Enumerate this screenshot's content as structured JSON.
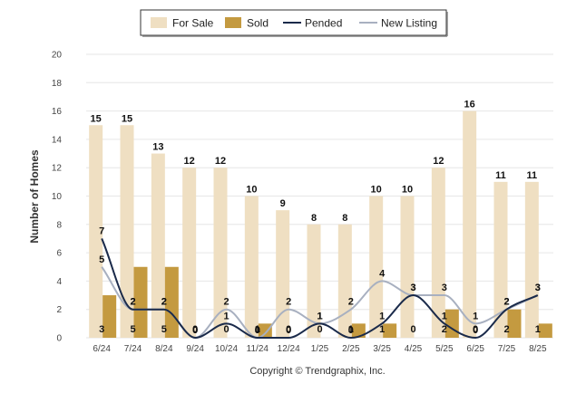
{
  "chart_data": {
    "type": "bar",
    "categories": [
      "6/24",
      "7/24",
      "8/24",
      "9/24",
      "10/24",
      "11/24",
      "12/24",
      "1/25",
      "2/25",
      "3/25",
      "4/25",
      "5/25",
      "6/25",
      "7/25",
      "8/25"
    ],
    "series": [
      {
        "name": "For Sale",
        "kind": "bar",
        "color": "#efdfc2",
        "values": [
          15,
          15,
          13,
          12,
          12,
          10,
          9,
          8,
          8,
          10,
          10,
          12,
          16,
          11,
          11
        ]
      },
      {
        "name": "Sold",
        "kind": "bar",
        "color": "#c49a40",
        "values": [
          3,
          5,
          5,
          0,
          0,
          1,
          0,
          0,
          1,
          1,
          0,
          2,
          0,
          2,
          1
        ]
      },
      {
        "name": "Pended",
        "kind": "line",
        "color": "#1a2a4a",
        "values": [
          7,
          2,
          2,
          0,
          1,
          0,
          0,
          1,
          0,
          1,
          3,
          1,
          0,
          2,
          3
        ]
      },
      {
        "name": "New Listing",
        "kind": "line",
        "color": "#a8b0c0",
        "values": [
          5,
          2,
          2,
          0,
          2,
          0,
          2,
          1,
          2,
          4,
          3,
          3,
          1,
          2,
          3
        ]
      }
    ],
    "ylabel": "Number of Homes",
    "ylim": [
      0,
      20
    ],
    "yticks": [
      0,
      2,
      4,
      6,
      8,
      10,
      12,
      14,
      16,
      18,
      20
    ],
    "legend": "top-center",
    "caption": "Copyright © Trendgraphix, Inc.",
    "grid": true
  }
}
